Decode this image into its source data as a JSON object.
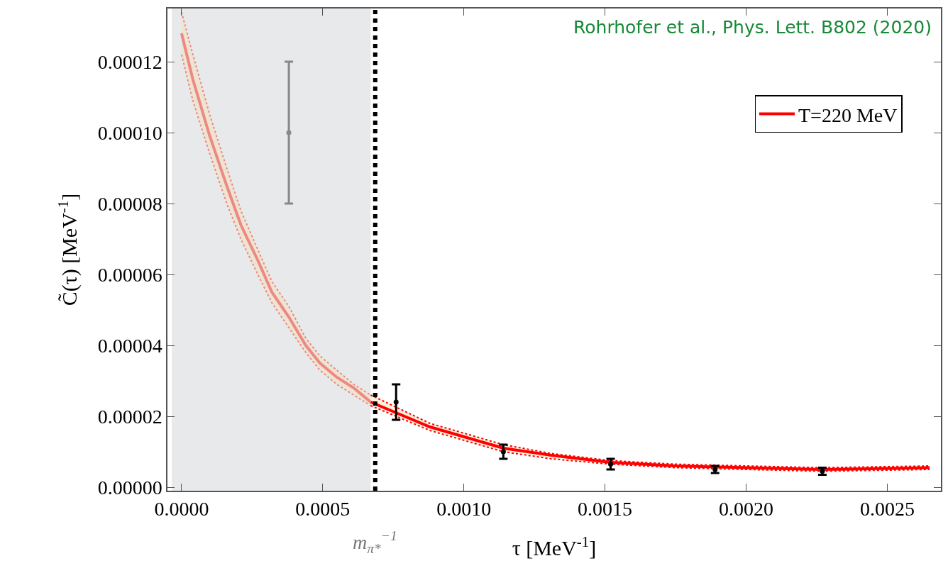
{
  "chart_data": {
    "type": "line",
    "xlabel": "τ [MeV$^{-1}$]",
    "ylabel": "C̃(τ) [MeV$^{-1}$]",
    "xlim": [
      -5e-05,
      0.00269
    ],
    "ylim": [
      -1e-06,
      0.000135
    ],
    "xticks": [
      {
        "value": 0,
        "label": "0.0000"
      },
      {
        "value": 0.0005,
        "label": "0.0005"
      },
      {
        "value": 0.001,
        "label": "0.0010"
      },
      {
        "value": 0.0015,
        "label": "0.0015"
      },
      {
        "value": 0.002,
        "label": "0.0020"
      },
      {
        "value": 0.0025,
        "label": "0.0025"
      }
    ],
    "yticks": [
      {
        "value": 0,
        "label": "0.00000"
      },
      {
        "value": 2e-05,
        "label": "0.00002"
      },
      {
        "value": 4e-05,
        "label": "0.00004"
      },
      {
        "value": 6e-05,
        "label": "0.00006"
      },
      {
        "value": 8e-05,
        "label": "0.00008"
      },
      {
        "value": 0.0001,
        "label": "0.00010"
      },
      {
        "value": 0.00012,
        "label": "0.00012"
      }
    ],
    "grid": false,
    "legend": "top right",
    "bands": [
      {
        "axis": "x",
        "from": -3.5e-05,
        "to": 0.00067,
        "color": "#e8e9eb"
      }
    ],
    "ref_lines": [
      {
        "axis": "x",
        "value": 0.000686,
        "label": "m$_{π*}$$^{−1}$",
        "color": "#000000",
        "line_style": "dotted"
      }
    ],
    "annotations": [
      "Rohrhofer et al., Phys. Lett. B802 (2020)"
    ],
    "series": [
      {
        "color": "#ee8884",
        "marker": "none",
        "x": [
          0,
          4e-05,
          0.0001,
          0.00016,
          0.00021,
          0.00027,
          0.00032,
          0.00038,
          0.00044,
          0.00049,
          0.00055,
          0.00061,
          0.00067
        ],
        "values": [
          0.000128,
          0.000115,
          9.9e-05,
          8.5e-05,
          7.4e-05,
          6.4e-05,
          5.5e-05,
          4.8e-05,
          4e-05,
          3.5e-05,
          3.1e-05,
          2.8e-05,
          2.4e-05
        ],
        "lower": [
          0.000122,
          0.000109,
          9.4e-05,
          8e-05,
          7e-05,
          6e-05,
          5.2e-05,
          4.5e-05,
          3.8e-05,
          3.3e-05,
          2.9e-05,
          2.6e-05,
          2.3e-05
        ],
        "upper": [
          0.000134,
          0.000122,
          0.000105,
          9e-05,
          7.8e-05,
          6.7e-05,
          5.8e-05,
          5.1e-05,
          4.2e-05,
          3.7e-05,
          3.3e-05,
          2.9e-05,
          2.6e-05
        ]
      },
      {
        "name": "T=220 MeV",
        "color": "#ff0000",
        "marker": "none",
        "x": [
          0.00067,
          0.00088,
          0.00114,
          0.00131,
          0.00152,
          0.00175,
          0.002,
          0.00227,
          0.00265
        ],
        "values": [
          2.4e-05,
          1.7e-05,
          1.1e-05,
          9e-06,
          7e-06,
          6e-06,
          5.5e-06,
          5e-06,
          5.5e-06
        ],
        "lower": [
          2.3e-05,
          1.6e-05,
          1e-05,
          8e-06,
          6.5e-06,
          5.5e-06,
          5e-06,
          4.5e-06,
          5e-06
        ],
        "upper": [
          2.6e-05,
          1.8e-05,
          1.2e-05,
          9.5e-06,
          7.5e-06,
          6.5e-06,
          6e-06,
          5.5e-06,
          6e-06
        ]
      },
      {
        "color": "#ee8884",
        "marker": "none",
        "line_style": "dotted",
        "x": [
          0,
          4e-05,
          0.0001,
          0.00016,
          0.00021,
          0.00027,
          0.00032,
          0.00038,
          0.00044,
          0.00049,
          0.00055,
          0.00061,
          0.00067
        ],
        "values": [
          0.000122,
          0.000109,
          9.4e-05,
          8e-05,
          7e-05,
          6e-05,
          5.2e-05,
          4.5e-05,
          3.8e-05,
          3.3e-05,
          2.9e-05,
          2.6e-05,
          2.3e-05
        ]
      },
      {
        "color": "#ee8884",
        "marker": "none",
        "line_style": "dotted",
        "x": [
          0,
          4e-05,
          0.0001,
          0.00016,
          0.00021,
          0.00027,
          0.00032,
          0.00038,
          0.00044,
          0.00049,
          0.00055,
          0.00061,
          0.00067
        ],
        "values": [
          0.000134,
          0.000122,
          0.000105,
          9e-05,
          7.8e-05,
          6.7e-05,
          5.8e-05,
          5.1e-05,
          4.2e-05,
          3.7e-05,
          3.3e-05,
          2.9e-05,
          2.6e-05
        ]
      },
      {
        "color": "#ff0000",
        "marker": "none",
        "line_style": "dotted",
        "x": [
          0.00067,
          0.00088,
          0.00114,
          0.00131,
          0.00152,
          0.00175,
          0.002,
          0.00227,
          0.00265
        ],
        "values": [
          2.3e-05,
          1.6e-05,
          1e-05,
          8e-06,
          6.5e-06,
          5.5e-06,
          5e-06,
          4.5e-06,
          5e-06
        ]
      },
      {
        "color": "#ff0000",
        "marker": "none",
        "line_style": "dotted",
        "x": [
          0.00067,
          0.00088,
          0.00114,
          0.00131,
          0.00152,
          0.00175,
          0.002,
          0.00227,
          0.00265
        ],
        "values": [
          2.6e-05,
          1.8e-05,
          1.2e-05,
          9.5e-06,
          7.5e-06,
          6.5e-06,
          6e-06,
          5.5e-06,
          6e-06
        ]
      },
      {
        "type": "scatter",
        "color": "#888888",
        "marker": "circle",
        "x": [
          0.00038
        ],
        "values": [
          0.0001
        ],
        "errors": [
          2e-05
        ]
      },
      {
        "type": "scatter",
        "color": "#000000",
        "marker": "circle",
        "x": [
          0.00076,
          0.00114,
          0.00152,
          0.00189,
          0.00227
        ],
        "values": [
          2.4e-05,
          1e-05,
          6.5e-06,
          5e-06,
          4.5e-06
        ],
        "errors": [
          5e-06,
          2e-06,
          1.5e-06,
          1e-06,
          1e-06
        ]
      }
    ]
  }
}
